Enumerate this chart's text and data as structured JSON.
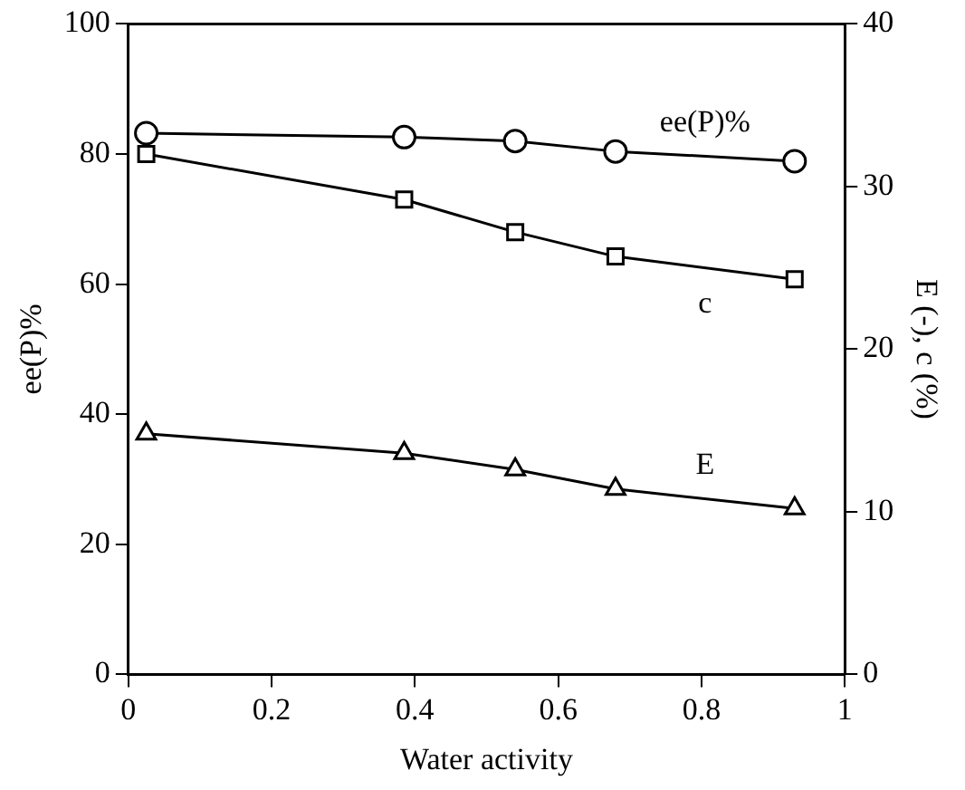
{
  "chart_data": {
    "type": "line",
    "xlabel": "Water activity",
    "ylabel": "ee(P)%",
    "y2label": "E (-), c (%)",
    "x": [
      0.025,
      0.385,
      0.54,
      0.68,
      0.93
    ],
    "xlim": [
      0,
      1
    ],
    "xticks": [
      0,
      0.2,
      0.4,
      0.6,
      0.8,
      1
    ],
    "ylim": [
      0,
      100
    ],
    "yticks": [
      0,
      20,
      40,
      60,
      80,
      100
    ],
    "y2lim": [
      0,
      40
    ],
    "y2ticks": [
      0,
      10,
      20,
      30,
      40
    ],
    "grid": false,
    "legend": false,
    "line_style": "solid",
    "series": [
      {
        "name": "ee(P)%",
        "color": "#000000",
        "marker": "circle",
        "values": [
          83.2,
          82.6,
          82.0,
          80.4,
          78.9
        ]
      },
      {
        "name": "c",
        "color": "#000000",
        "marker": "square",
        "axis": "y2",
        "values": [
          32.0,
          29.2,
          27.2,
          25.7,
          24.3
        ]
      },
      {
        "name": "E",
        "color": "#000000",
        "marker": "triangle",
        "axis": "y2",
        "values": [
          14.8,
          13.6,
          12.6,
          11.4,
          10.2
        ]
      }
    ]
  }
}
